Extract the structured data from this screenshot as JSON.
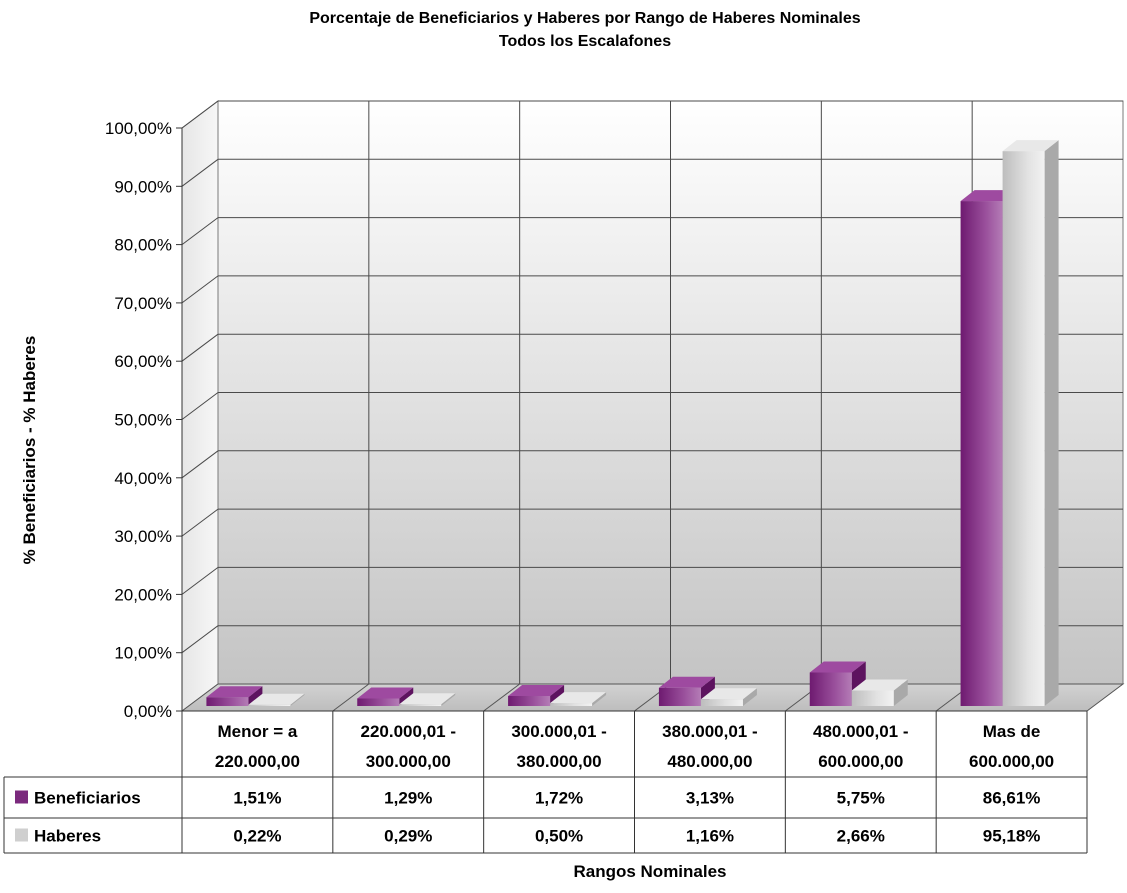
{
  "chart_data": {
    "type": "bar",
    "title": "Porcentaje de Beneficiarios y Haberes por Rango de Haberes Nominales",
    "subtitle": "Todos los Escalafones",
    "xlabel": "Rangos Nominales",
    "ylabel": "% Beneficiarios - % Haberes",
    "ylim": [
      0,
      100
    ],
    "yticks": [
      "0,00%",
      "10,00%",
      "20,00%",
      "30,00%",
      "40,00%",
      "50,00%",
      "60,00%",
      "70,00%",
      "80,00%",
      "90,00%",
      "100,00%"
    ],
    "grid": true,
    "categories": [
      [
        "Menor = a",
        "220.000,00"
      ],
      [
        "220.000,01 -",
        "300.000,00"
      ],
      [
        "300.000,01 -",
        "380.000,00"
      ],
      [
        "380.000,01 -",
        "480.000,00"
      ],
      [
        "480.000,01 -",
        "600.000,00"
      ],
      [
        "Mas de",
        "600.000,00"
      ]
    ],
    "series": [
      {
        "name": "Beneficiarios",
        "values": [
          1.51,
          1.29,
          1.72,
          3.13,
          5.75,
          86.61
        ],
        "labels": [
          "1,51%",
          "1,29%",
          "1,72%",
          "3,13%",
          "5,75%",
          "86,61%"
        ],
        "color": "#8e3a8e"
      },
      {
        "name": "Haberes",
        "values": [
          0.22,
          0.29,
          0.5,
          1.16,
          2.66,
          95.18
        ],
        "labels": [
          "0,22%",
          "0,29%",
          "0,50%",
          "1,16%",
          "2,66%",
          "95,18%"
        ],
        "color": "#d4d4d4"
      }
    ],
    "data_table": true
  }
}
